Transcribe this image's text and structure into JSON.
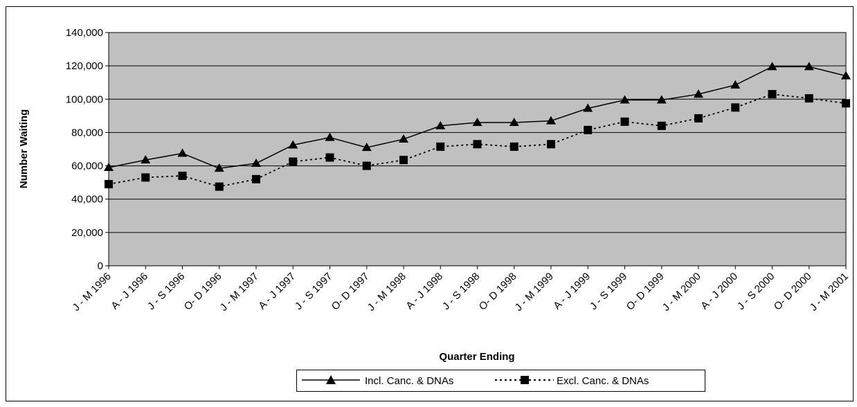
{
  "chart_data": {
    "type": "line",
    "title": "",
    "xlabel": "Quarter Ending",
    "ylabel": "Number Waiting",
    "ylim": [
      0,
      140000
    ],
    "y_ticks": [
      "0",
      "20,000",
      "40,000",
      "60,000",
      "80,000",
      "100,000",
      "120,000",
      "140,000"
    ],
    "y_tick_values": [
      0,
      20000,
      40000,
      60000,
      80000,
      100000,
      120000,
      140000
    ],
    "categories": [
      "J - M 1996",
      "A - J 1996",
      "J - S 1996",
      "O- D 1996",
      "J - M 1997",
      "A - J 1997",
      "J - S 1997",
      "O- D 1997",
      "J - M 1998",
      "A - J 1998",
      "J - S 1998",
      "O- D 1998",
      "J - M 1999",
      "A - J 1999",
      "J - S 1999",
      "O- D 1999",
      "J - M 2000",
      "A - J 2000",
      "J - S 2000",
      "O- D 2000",
      "J - M 2001"
    ],
    "series": [
      {
        "name": "Incl. Canc. & DNAs",
        "color": "#000000",
        "marker": "triangle",
        "line_style": "solid",
        "values": [
          59000,
          63500,
          67500,
          58500,
          61500,
          72500,
          77000,
          71000,
          76000,
          84000,
          86000,
          86000,
          87000,
          94500,
          99500,
          99500,
          103000,
          108500,
          119500,
          119500,
          114000
        ]
      },
      {
        "name": "Excl. Canc. & DNAs",
        "color": "#000000",
        "marker": "square",
        "line_style": "dotted",
        "values": [
          49000,
          53000,
          54000,
          47500,
          52000,
          62500,
          65000,
          60000,
          63500,
          71500,
          73000,
          71500,
          73000,
          81500,
          86500,
          84000,
          88500,
          95000,
          103000,
          100500,
          97500
        ]
      }
    ],
    "plot_background": "#c0c0c0",
    "grid": true,
    "legend_position": "bottom-center"
  }
}
